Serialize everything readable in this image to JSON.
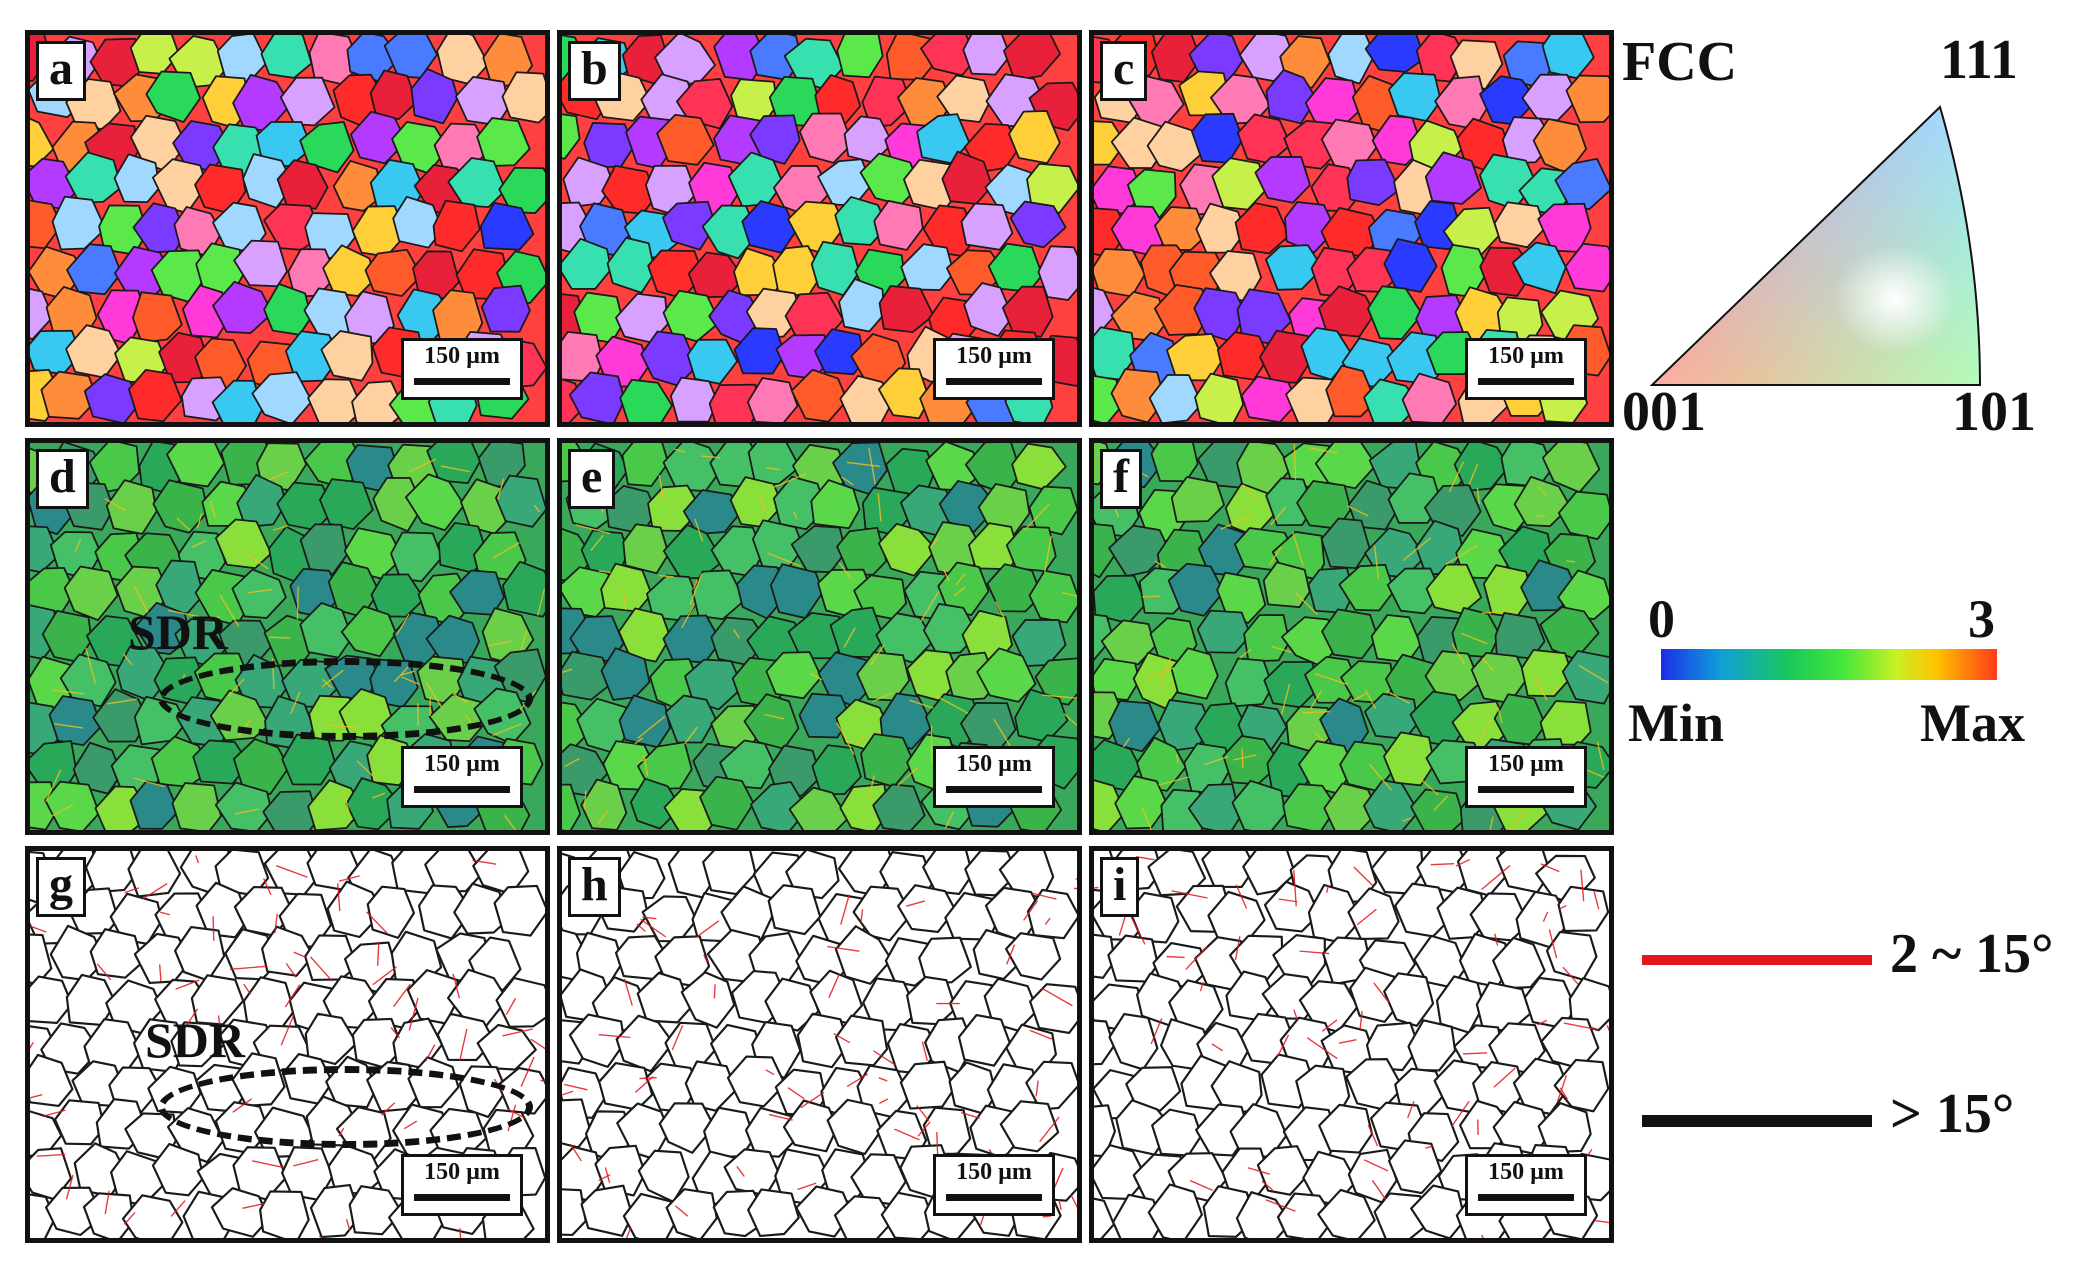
{
  "panels": [
    {
      "label": "a",
      "type": "orientation",
      "scale": "150 µm"
    },
    {
      "label": "b",
      "type": "orientation",
      "scale": "150 µm"
    },
    {
      "label": "c",
      "type": "orientation",
      "scale": "150 µm"
    },
    {
      "label": "d",
      "type": "strain",
      "scale": "150 µm",
      "annotation": "SDR"
    },
    {
      "label": "e",
      "type": "strain",
      "scale": "150 µm"
    },
    {
      "label": "f",
      "type": "strain",
      "scale": "150 µm"
    },
    {
      "label": "g",
      "type": "boundary",
      "scale": "150 µm",
      "annotation": "SDR"
    },
    {
      "label": "h",
      "type": "boundary",
      "scale": "150 µm"
    },
    {
      "label": "i",
      "type": "boundary",
      "scale": "150 µm"
    }
  ],
  "ipf_legend": {
    "title": "FCC",
    "corner_001": "001",
    "corner_101": "101",
    "corner_111": "111"
  },
  "colorbar": {
    "min_value": "0",
    "max_value": "3",
    "min_label": "Min",
    "max_label": "Max"
  },
  "boundary_legend": {
    "low_angle": {
      "label": "2 ~ 15°",
      "color": "#e3161b"
    },
    "high_angle": {
      "label": "> 15°",
      "color": "#111111"
    }
  }
}
